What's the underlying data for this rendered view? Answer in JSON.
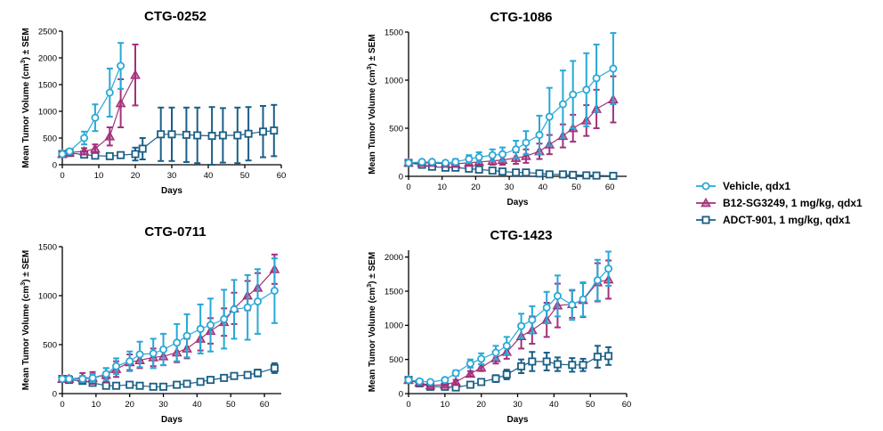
{
  "colors": {
    "vehicle": "#27a9d6",
    "b12": "#a3317a",
    "adct": "#1b5f86",
    "axis": "#000000"
  },
  "legend": [
    {
      "key": "vehicle",
      "label": "Vehicle, qdx1",
      "marker": "circle"
    },
    {
      "key": "b12",
      "label": "B12-SG3249, 1 mg/kg, qdx1",
      "marker": "triangle"
    },
    {
      "key": "adct",
      "label": "ADCT-901, 1 mg/kg, qdx1",
      "marker": "square"
    }
  ],
  "chart_data": [
    {
      "type": "line",
      "title": "CTG-0252",
      "xlabel": "Days",
      "ylabel": "Mean Tumor Volume (cm3) ± SEM",
      "xlim": [
        0,
        60
      ],
      "ylim": [
        0,
        2500
      ],
      "xticks": [
        0,
        10,
        20,
        30,
        40,
        50,
        60
      ],
      "yticks": [
        0,
        500,
        1000,
        1500,
        2000,
        2500
      ],
      "series": [
        {
          "key": "vehicle",
          "name": "Vehicle, qdx1",
          "x": [
            0,
            2,
            6,
            9,
            13,
            16
          ],
          "y": [
            200,
            250,
            500,
            880,
            1350,
            1850
          ],
          "err": [
            20,
            40,
            120,
            250,
            450,
            430
          ]
        },
        {
          "key": "b12",
          "name": "B12-SG3249, 1 mg/kg, qdx1",
          "x": [
            0,
            2,
            6,
            9,
            13,
            16,
            20
          ],
          "y": [
            200,
            230,
            250,
            300,
            530,
            1150,
            1680
          ],
          "err": [
            20,
            30,
            60,
            80,
            170,
            450,
            570
          ]
        },
        {
          "key": "adct",
          "name": "ADCT-901, 1 mg/kg, qdx1",
          "x": [
            0,
            2,
            6,
            9,
            13,
            16,
            20,
            22,
            27,
            30,
            34,
            37,
            41,
            44,
            48,
            51,
            55,
            58
          ],
          "y": [
            200,
            220,
            190,
            170,
            160,
            180,
            200,
            300,
            570,
            570,
            560,
            550,
            540,
            550,
            550,
            580,
            620,
            640
          ],
          "err": [
            20,
            30,
            40,
            40,
            30,
            50,
            120,
            200,
            500,
            500,
            510,
            520,
            540,
            510,
            520,
            500,
            480,
            480
          ]
        }
      ]
    },
    {
      "type": "line",
      "title": "CTG-1086",
      "xlabel": "Days",
      "ylabel": "Mean Tumor Volume (cm3) ± SEM",
      "xlim": [
        0,
        65
      ],
      "ylim": [
        0,
        1500
      ],
      "xticks": [
        0,
        10,
        20,
        30,
        40,
        50,
        60
      ],
      "yticks": [
        0,
        500,
        1000,
        1500
      ],
      "series": [
        {
          "key": "vehicle",
          "name": "Vehicle, qdx1",
          "x": [
            0,
            4,
            7,
            11,
            14,
            18,
            21,
            25,
            28,
            32,
            35,
            39,
            42,
            46,
            49,
            53,
            56,
            61
          ],
          "y": [
            140,
            150,
            150,
            140,
            150,
            180,
            200,
            220,
            230,
            280,
            350,
            430,
            620,
            750,
            850,
            900,
            1020,
            1120
          ],
          "err": [
            20,
            20,
            20,
            20,
            30,
            40,
            50,
            60,
            70,
            90,
            120,
            200,
            300,
            350,
            350,
            380,
            350,
            370
          ]
        },
        {
          "key": "b12",
          "name": "B12-SG3249, 1 mg/kg, qdx1",
          "x": [
            0,
            4,
            7,
            11,
            14,
            18,
            21,
            25,
            28,
            32,
            35,
            39,
            42,
            46,
            49,
            53,
            56,
            61
          ],
          "y": [
            140,
            140,
            140,
            130,
            130,
            140,
            150,
            160,
            170,
            190,
            210,
            260,
            330,
            420,
            500,
            580,
            700,
            800
          ],
          "err": [
            20,
            20,
            20,
            20,
            20,
            25,
            30,
            40,
            50,
            60,
            70,
            80,
            100,
            120,
            140,
            160,
            200,
            240
          ]
        },
        {
          "key": "adct",
          "name": "ADCT-901, 1 mg/kg, qdx1",
          "x": [
            0,
            4,
            7,
            11,
            14,
            18,
            21,
            25,
            28,
            32,
            35,
            39,
            42,
            46,
            49,
            53,
            56,
            61
          ],
          "y": [
            140,
            120,
            100,
            90,
            90,
            80,
            70,
            60,
            50,
            40,
            40,
            30,
            20,
            20,
            15,
            10,
            8,
            5
          ],
          "err": [
            20,
            20,
            15,
            15,
            15,
            15,
            12,
            12,
            10,
            10,
            10,
            10,
            8,
            8,
            8,
            5,
            5,
            5
          ]
        }
      ]
    },
    {
      "type": "line",
      "title": "CTG-0711",
      "xlabel": "Days",
      "ylabel": "Mean Tumor Volume (cm3) ± SEM",
      "xlim": [
        0,
        65
      ],
      "ylim": [
        0,
        1500
      ],
      "xticks": [
        0,
        10,
        20,
        30,
        40,
        50,
        60
      ],
      "yticks": [
        0,
        500,
        1000,
        1500
      ],
      "series": [
        {
          "key": "vehicle",
          "name": "Vehicle, qdx1",
          "x": [
            0,
            2,
            6,
            9,
            13,
            16,
            20,
            23,
            27,
            30,
            34,
            37,
            41,
            44,
            48,
            51,
            55,
            58,
            63
          ],
          "y": [
            150,
            150,
            150,
            160,
            200,
            280,
            330,
            400,
            410,
            450,
            520,
            590,
            660,
            700,
            760,
            860,
            880,
            940,
            1050
          ],
          "err": [
            20,
            20,
            30,
            40,
            60,
            80,
            100,
            130,
            150,
            160,
            190,
            220,
            250,
            270,
            300,
            300,
            330,
            330,
            330
          ]
        },
        {
          "key": "b12",
          "name": "B12-SG3249, 1 mg/kg, qdx1",
          "x": [
            0,
            2,
            6,
            9,
            13,
            16,
            20,
            23,
            27,
            30,
            34,
            37,
            41,
            44,
            48,
            51,
            55,
            58,
            63
          ],
          "y": [
            150,
            150,
            160,
            160,
            190,
            250,
            320,
            340,
            370,
            380,
            420,
            460,
            560,
            640,
            730,
            870,
            1000,
            1080,
            1270
          ],
          "err": [
            20,
            30,
            50,
            60,
            70,
            80,
            80,
            80,
            90,
            90,
            100,
            100,
            120,
            130,
            140,
            160,
            150,
            150,
            150
          ]
        },
        {
          "key": "adct",
          "name": "ADCT-901, 1 mg/kg, qdx1",
          "x": [
            0,
            2,
            6,
            9,
            13,
            16,
            20,
            23,
            27,
            30,
            34,
            37,
            41,
            44,
            48,
            51,
            55,
            58,
            63
          ],
          "y": [
            150,
            140,
            130,
            110,
            80,
            80,
            90,
            80,
            70,
            70,
            90,
            100,
            120,
            140,
            160,
            180,
            190,
            210,
            260
          ],
          "err": [
            20,
            20,
            20,
            20,
            15,
            15,
            15,
            15,
            10,
            10,
            15,
            15,
            20,
            20,
            25,
            25,
            30,
            35,
            50
          ]
        }
      ]
    },
    {
      "type": "line",
      "title": "CTG-1423",
      "xlabel": "Days",
      "ylabel": "Mean Tumor Volume (cm3) ± SEM",
      "xlim": [
        0,
        60
      ],
      "ylim": [
        0,
        2100
      ],
      "xticks": [
        0,
        10,
        20,
        30,
        40,
        50,
        60
      ],
      "yticks": [
        0,
        500,
        1000,
        1500,
        2000
      ],
      "series": [
        {
          "key": "vehicle",
          "name": "Vehicle, qdx1",
          "x": [
            0,
            3,
            6,
            10,
            13,
            17,
            20,
            24,
            27,
            31,
            34,
            38,
            41,
            45,
            48,
            52,
            55
          ],
          "y": [
            200,
            180,
            170,
            200,
            300,
            440,
            510,
            600,
            700,
            990,
            1080,
            1260,
            1430,
            1300,
            1380,
            1660,
            1830
          ],
          "err": [
            20,
            20,
            20,
            30,
            40,
            60,
            80,
            100,
            130,
            180,
            200,
            230,
            300,
            220,
            250,
            300,
            250
          ]
        },
        {
          "key": "b12",
          "name": "B12-SG3249, 1 mg/kg, qdx1",
          "x": [
            0,
            3,
            6,
            10,
            13,
            17,
            20,
            24,
            27,
            31,
            34,
            38,
            41,
            45,
            48,
            52,
            55
          ],
          "y": [
            200,
            160,
            120,
            130,
            170,
            290,
            380,
            520,
            610,
            840,
            930,
            1080,
            1290,
            1310,
            1370,
            1630,
            1670
          ],
          "err": [
            20,
            20,
            20,
            20,
            30,
            40,
            50,
            80,
            100,
            180,
            200,
            250,
            320,
            200,
            250,
            280,
            280
          ]
        },
        {
          "key": "adct",
          "name": "ADCT-901, 1 mg/kg, qdx1",
          "x": [
            0,
            3,
            6,
            10,
            13,
            17,
            20,
            24,
            27,
            31,
            34,
            38,
            41,
            45,
            48,
            52,
            55
          ],
          "y": [
            200,
            150,
            100,
            100,
            90,
            130,
            170,
            220,
            280,
            400,
            470,
            470,
            430,
            420,
            420,
            540,
            550
          ],
          "err": [
            20,
            20,
            15,
            15,
            15,
            20,
            30,
            50,
            70,
            100,
            140,
            130,
            100,
            100,
            90,
            160,
            130
          ]
        }
      ]
    }
  ]
}
